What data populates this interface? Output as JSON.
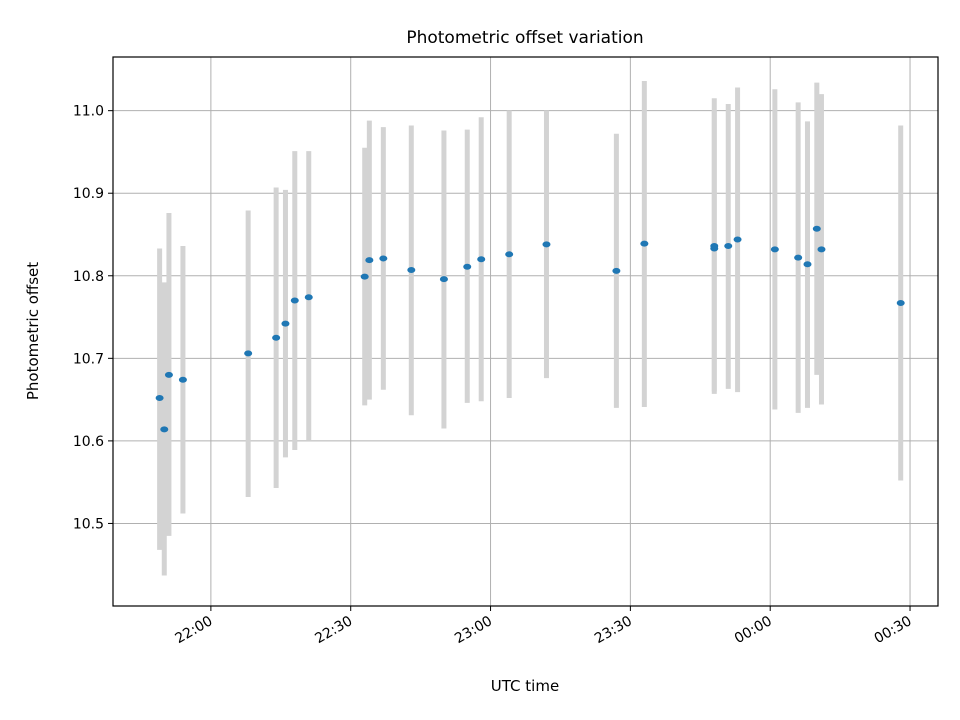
{
  "chart_data": {
    "type": "scatter",
    "title": "Photometric offset variation",
    "xlabel": "UTC time",
    "ylabel": "Photometric offset",
    "x_axis": {
      "kind": "time",
      "range": [
        "21:39",
        "00:36"
      ],
      "ticks": [
        "22:00",
        "22:30",
        "23:00",
        "23:30",
        "00:00",
        "00:30"
      ],
      "tick_rotation_deg": 30
    },
    "y_axis": {
      "range": [
        10.4,
        11.065
      ],
      "ticks": [
        "10.5",
        "10.6",
        "10.7",
        "10.8",
        "10.9",
        "11.0"
      ]
    },
    "grid": true,
    "errorbar_color": "#d3d3d3",
    "marker_color": "#1f77b4",
    "series": [
      {
        "points": [
          {
            "x": "21:49",
            "y": 10.652,
            "lo": 10.468,
            "hi": 10.833
          },
          {
            "x": "21:50",
            "y": 10.614,
            "lo": 10.437,
            "hi": 10.792
          },
          {
            "x": "21:51",
            "y": 10.68,
            "lo": 10.485,
            "hi": 10.876
          },
          {
            "x": "21:54",
            "y": 10.674,
            "lo": 10.512,
            "hi": 10.836
          },
          {
            "x": "22:08",
            "y": 10.706,
            "lo": 10.532,
            "hi": 10.879
          },
          {
            "x": "22:14",
            "y": 10.725,
            "lo": 10.543,
            "hi": 10.907
          },
          {
            "x": "22:16",
            "y": 10.742,
            "lo": 10.58,
            "hi": 10.904
          },
          {
            "x": "22:18",
            "y": 10.77,
            "lo": 10.589,
            "hi": 10.951
          },
          {
            "x": "22:21",
            "y": 10.774,
            "lo": 10.601,
            "hi": 10.951
          },
          {
            "x": "22:33",
            "y": 10.799,
            "lo": 10.643,
            "hi": 10.955
          },
          {
            "x": "22:34",
            "y": 10.819,
            "lo": 10.65,
            "hi": 10.988
          },
          {
            "x": "22:37",
            "y": 10.821,
            "lo": 10.662,
            "hi": 10.98
          },
          {
            "x": "22:43",
            "y": 10.807,
            "lo": 10.631,
            "hi": 10.982
          },
          {
            "x": "22:50",
            "y": 10.796,
            "lo": 10.615,
            "hi": 10.976
          },
          {
            "x": "22:55",
            "y": 10.811,
            "lo": 10.646,
            "hi": 10.977
          },
          {
            "x": "22:58",
            "y": 10.82,
            "lo": 10.648,
            "hi": 10.992
          },
          {
            "x": "23:04",
            "y": 10.826,
            "lo": 10.652,
            "hi": 11.0
          },
          {
            "x": "23:12",
            "y": 10.838,
            "lo": 10.676,
            "hi": 11.0
          },
          {
            "x": "23:27",
            "y": 10.806,
            "lo": 10.64,
            "hi": 10.972
          },
          {
            "x": "23:33",
            "y": 10.839,
            "lo": 10.641,
            "hi": 11.036
          },
          {
            "x": "23:48",
            "y": 10.833,
            "lo": 10.66,
            "hi": 11.015
          },
          {
            "x": "23:48",
            "y": 10.836,
            "lo": 10.657,
            "hi": 11.0
          },
          {
            "x": "23:51",
            "y": 10.836,
            "lo": 10.663,
            "hi": 11.008
          },
          {
            "x": "23:53",
            "y": 10.844,
            "lo": 10.659,
            "hi": 11.028
          },
          {
            "x": "00:01",
            "y": 10.832,
            "lo": 10.638,
            "hi": 11.026
          },
          {
            "x": "00:06",
            "y": 10.822,
            "lo": 10.634,
            "hi": 11.01
          },
          {
            "x": "00:08",
            "y": 10.814,
            "lo": 10.64,
            "hi": 10.987
          },
          {
            "x": "00:10",
            "y": 10.857,
            "lo": 10.68,
            "hi": 11.034
          },
          {
            "x": "00:11",
            "y": 10.832,
            "lo": 10.644,
            "hi": 11.02
          },
          {
            "x": "00:28",
            "y": 10.767,
            "lo": 10.552,
            "hi": 10.982
          }
        ]
      }
    ]
  }
}
